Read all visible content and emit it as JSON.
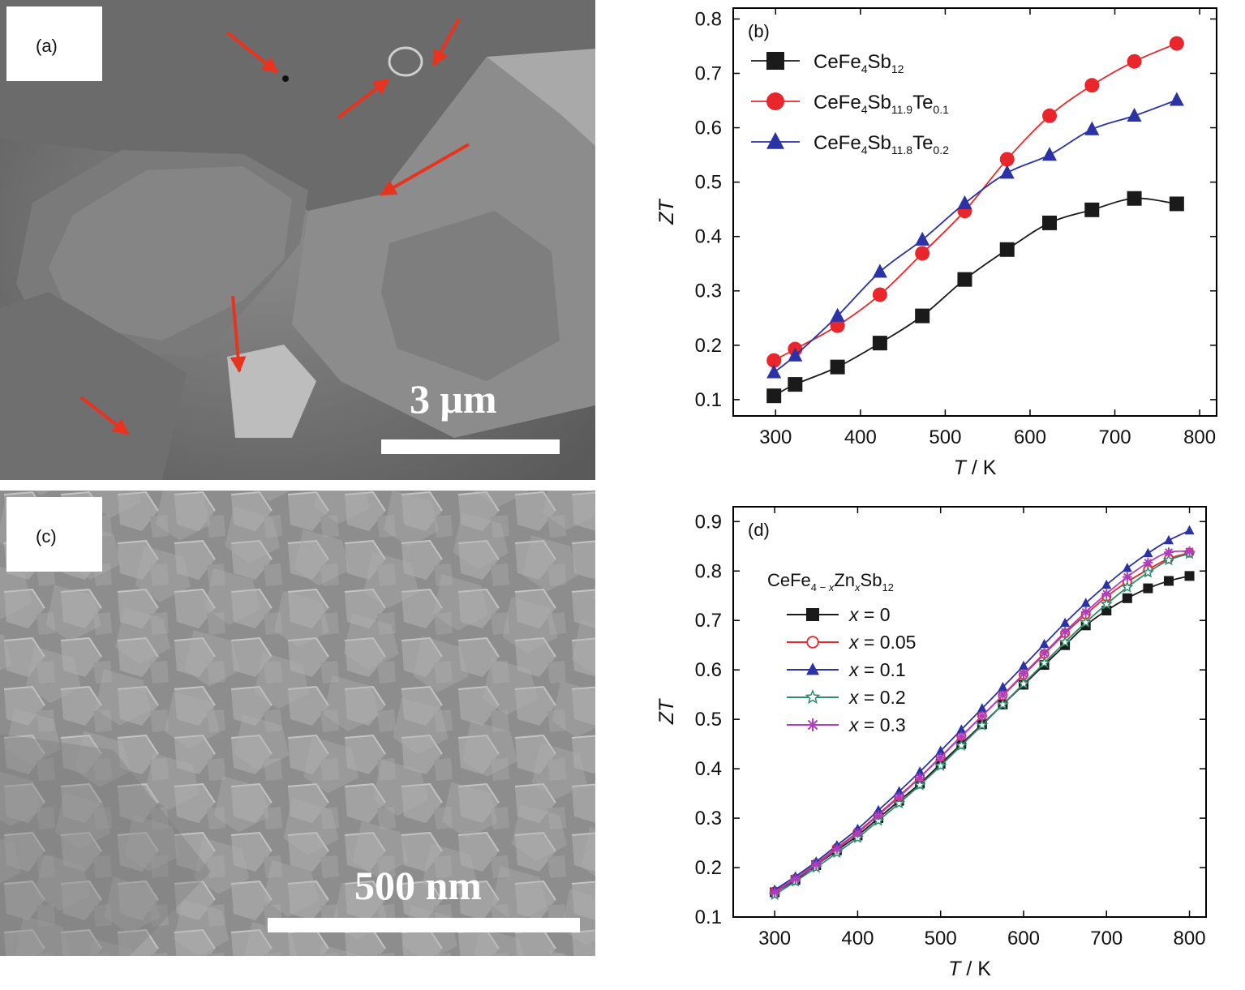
{
  "panels": {
    "a": {
      "label": "(a)",
      "scale_text": "3 μm"
    },
    "c": {
      "label": "(c)",
      "scale_text": "500 nm"
    }
  },
  "colors": {
    "black_series": "#1a1a1a",
    "red_series": "#e8262b",
    "blue_series": "#2b32a6",
    "teal_series": "#2f8a6e",
    "magenta_series": "#b03cc0",
    "arrow": "#e8331f"
  },
  "chart_data": [
    {
      "panel": "b",
      "type": "line",
      "label": "(b)",
      "xlabel_italic": "T",
      "xlabel_rest": " / K",
      "ylabel": "ZT",
      "xlim": [
        250,
        820
      ],
      "ylim": [
        0.07,
        0.82
      ],
      "xticks": [
        300,
        400,
        500,
        600,
        700,
        800
      ],
      "yticks": [
        "0.1",
        "0.2",
        "0.3",
        "0.4",
        "0.5",
        "0.6",
        "0.7",
        "0.8"
      ],
      "x": [
        298,
        323,
        373,
        423,
        473,
        523,
        573,
        623,
        673,
        723,
        773
      ],
      "series": [
        {
          "base": "CeFe",
          "s1": "4",
          "mid": "Sb",
          "s2": "12",
          "tail": "",
          "s3": "",
          "marker": "square",
          "color": "#1a1a1a",
          "values": [
            0.107,
            0.128,
            0.16,
            0.204,
            0.254,
            0.321,
            0.376,
            0.425,
            0.449,
            0.47,
            0.46
          ]
        },
        {
          "base": "CeFe",
          "s1": "4",
          "mid": "Sb",
          "s2": "11.9",
          "tail": "Te",
          "s3": "0.1",
          "marker": "circle",
          "color": "#e8262b",
          "values": [
            0.172,
            0.193,
            0.236,
            0.293,
            0.369,
            0.447,
            0.542,
            0.622,
            0.678,
            0.722,
            0.755
          ]
        },
        {
          "base": "CeFe",
          "s1": "4",
          "mid": "Sb",
          "s2": "11.8",
          "tail": "Te",
          "s3": "0.2",
          "marker": "triangle",
          "color": "#2b32a6",
          "values": [
            0.15,
            0.181,
            0.254,
            0.335,
            0.394,
            0.461,
            0.517,
            0.55,
            0.597,
            0.622,
            0.651
          ]
        }
      ]
    },
    {
      "panel": "d",
      "type": "line",
      "label": "(d)",
      "xlabel_italic": "T",
      "xlabel_rest": " / K",
      "ylabel": "ZT",
      "xlim": [
        250,
        820
      ],
      "ylim": [
        0.1,
        0.93
      ],
      "xticks": [
        300,
        400,
        500,
        600,
        700,
        800
      ],
      "yticks": [
        "0.1",
        "0.2",
        "0.3",
        "0.4",
        "0.5",
        "0.6",
        "0.7",
        "0.8",
        "0.9"
      ],
      "legend_title": {
        "a": "CeFe",
        "s1": "4 − ",
        "s1i": "x",
        "b": "Zn",
        "s2i": "x",
        "c": "Sb",
        "s3": "12"
      },
      "x": [
        300,
        325,
        350,
        375,
        400,
        425,
        450,
        475,
        500,
        525,
        550,
        575,
        600,
        625,
        650,
        675,
        700,
        725,
        750,
        775,
        800
      ],
      "series": [
        {
          "xi": "x",
          "name": " = 0",
          "marker": "square",
          "color": "#1a1a1a",
          "values": [
            0.15,
            0.175,
            0.205,
            0.235,
            0.265,
            0.3,
            0.335,
            0.37,
            0.41,
            0.45,
            0.49,
            0.53,
            0.57,
            0.61,
            0.65,
            0.69,
            0.72,
            0.745,
            0.765,
            0.78,
            0.79
          ]
        },
        {
          "xi": "x",
          "name": " = 0.05",
          "marker": "circle-open",
          "color": "#e8262b",
          "values": [
            0.152,
            0.178,
            0.208,
            0.24,
            0.272,
            0.308,
            0.345,
            0.383,
            0.424,
            0.466,
            0.507,
            0.548,
            0.59,
            0.632,
            0.674,
            0.712,
            0.748,
            0.778,
            0.803,
            0.825,
            0.837
          ]
        },
        {
          "xi": "x",
          "name": " = 0.1",
          "marker": "triangle",
          "color": "#2b32a6",
          "values": [
            0.155,
            0.182,
            0.212,
            0.245,
            0.278,
            0.316,
            0.354,
            0.394,
            0.436,
            0.479,
            0.522,
            0.565,
            0.608,
            0.652,
            0.695,
            0.735,
            0.772,
            0.806,
            0.836,
            0.862,
            0.882
          ]
        },
        {
          "xi": "x",
          "name": " = 0.2",
          "marker": "star",
          "color": "#2f8a6e",
          "values": [
            0.145,
            0.172,
            0.2,
            0.23,
            0.26,
            0.295,
            0.33,
            0.367,
            0.406,
            0.447,
            0.488,
            0.53,
            0.572,
            0.614,
            0.656,
            0.696,
            0.733,
            0.767,
            0.797,
            0.822,
            0.835
          ]
        },
        {
          "xi": "x",
          "name": " = 0.3",
          "marker": "asterisk",
          "color": "#b03cc0",
          "values": [
            0.15,
            0.177,
            0.206,
            0.238,
            0.27,
            0.306,
            0.343,
            0.382,
            0.423,
            0.465,
            0.507,
            0.549,
            0.592,
            0.634,
            0.677,
            0.717,
            0.754,
            0.788,
            0.817,
            0.838,
            0.84
          ]
        }
      ]
    }
  ]
}
